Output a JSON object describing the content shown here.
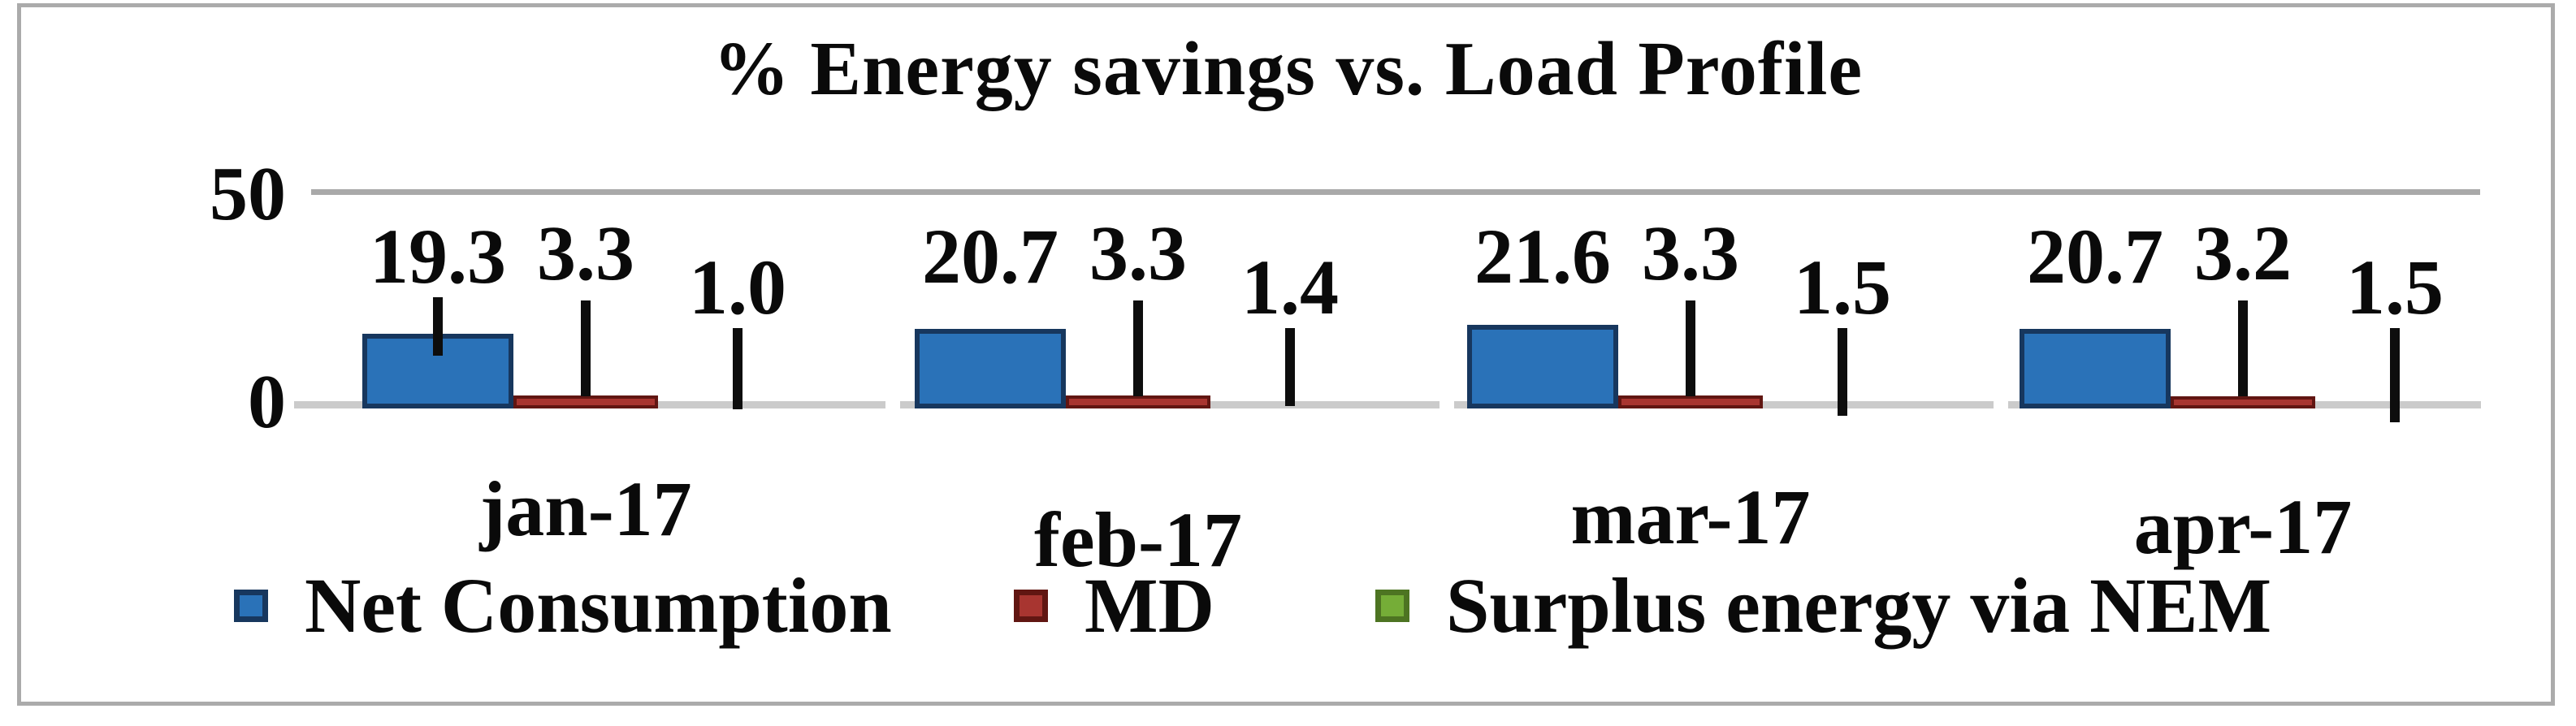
{
  "chart_data": {
    "type": "bar",
    "title": "% Energy savings vs. Load Profile",
    "categories": [
      "jan-17",
      "feb-17",
      "mar-17",
      "apr-17"
    ],
    "series": [
      {
        "name": "Net Consumption",
        "values": [
          19.3,
          20.7,
          21.6,
          20.7
        ],
        "fill": "#2A72B8",
        "border": "#17375E"
      },
      {
        "name": "MD",
        "values": [
          3.3,
          3.3,
          3.3,
          3.2
        ],
        "fill": "#A83530",
        "border": "#611612"
      },
      {
        "name": "Surplus energy via NEM",
        "values": [
          1.0,
          1.4,
          1.5,
          1.5
        ],
        "fill": "#75AD37",
        "border": "#4D7422"
      }
    ],
    "ylim": [
      0,
      50
    ],
    "ytick_labels": [
      "0",
      "50"
    ],
    "xlabel": "",
    "ylabel": "",
    "grid": "horizontal-gridlines-at-0-and-50",
    "legend_position": "bottom",
    "value_labels": true,
    "value_label_format": "1-decimal",
    "annotations": {
      "leader_lines": [
        [
          true,
          false,
          false,
          false
        ],
        [
          true,
          true,
          true,
          true
        ],
        [
          true,
          true,
          true,
          true
        ]
      ],
      "bars_drawn": [
        true,
        true,
        false
      ],
      "note": "Surplus energy via NEM bars are too small to be visible; only black leader lines point to the baseline."
    },
    "frame_color": "#ABABAB",
    "gridline_color": "#A9A9A9",
    "baseline_color": "#CBCBCB",
    "leader_line_color": "#0d0d0d",
    "text_color": "#0a0a0a"
  }
}
